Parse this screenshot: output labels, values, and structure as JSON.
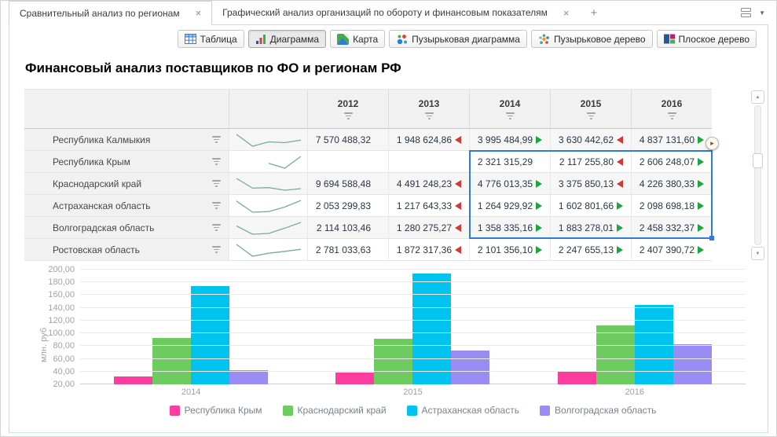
{
  "tabs": [
    {
      "label": "Сравнительный анализ по регионам",
      "active": true
    },
    {
      "label": "Графический анализ организаций по обороту и финансовым показателям",
      "active": false
    }
  ],
  "ui": {
    "close": "×",
    "plus": "+",
    "caret": "▼",
    "handle_arrow": "▸",
    "scroll_up": "▲",
    "scroll_down": "▼"
  },
  "toolbar": {
    "buttons": [
      {
        "label": "Таблица",
        "icon": "table-icon",
        "active": false
      },
      {
        "label": "Диаграмма",
        "icon": "bar-chart-icon",
        "active": true
      },
      {
        "label": "Карта",
        "icon": "map-icon",
        "active": false
      },
      {
        "label": "Пузырьковая диаграмма",
        "icon": "bubble-diagram-icon",
        "active": false
      },
      {
        "label": "Пузырьковое дерево",
        "icon": "bubble-tree-icon",
        "active": false
      },
      {
        "label": "Плоское дерево",
        "icon": "flat-tree-icon",
        "active": false
      }
    ]
  },
  "title": "Финансовый анализ поставщиков по ФО и регионам РФ",
  "table": {
    "year_columns": [
      "2012",
      "2013",
      "2014",
      "2015",
      "2016"
    ],
    "rows": [
      {
        "name": "Республика Калмыкия",
        "cells": [
          {
            "v": "7 570 488,32",
            "d": null
          },
          {
            "v": "1 948 624,86",
            "d": "down"
          },
          {
            "v": "3 995 484,99",
            "d": "up"
          },
          {
            "v": "3 630 442,62",
            "d": "down"
          },
          {
            "v": "4 837 131,60",
            "d": "up"
          }
        ],
        "spark": [
          7570488.32,
          1948624.86,
          3995484.99,
          3630442.62,
          4837131.6
        ]
      },
      {
        "name": "Республика Крым",
        "cells": [
          {
            "v": "",
            "d": null
          },
          {
            "v": "",
            "d": null
          },
          {
            "v": "2 321 315,29",
            "d": null
          },
          {
            "v": "2 117 255,80",
            "d": "down"
          },
          {
            "v": "2 606 248,07",
            "d": "up"
          }
        ],
        "spark": [
          null,
          null,
          2321315.29,
          2117255.8,
          2606248.07
        ]
      },
      {
        "name": "Краснодарский край",
        "cells": [
          {
            "v": "9 694 588,48",
            "d": null
          },
          {
            "v": "4 491 248,23",
            "d": "down"
          },
          {
            "v": "4 776 013,35",
            "d": "up"
          },
          {
            "v": "3 375 850,13",
            "d": "down"
          },
          {
            "v": "4 226 380,33",
            "d": "up"
          }
        ],
        "spark": [
          9694588.48,
          4491248.23,
          4776013.35,
          3375850.13,
          4226380.33
        ]
      },
      {
        "name": "Астраханская область",
        "cells": [
          {
            "v": "2 053 299,83",
            "d": null
          },
          {
            "v": "1 217 643,33",
            "d": "down"
          },
          {
            "v": "1 264 929,92",
            "d": "up"
          },
          {
            "v": "1 602 801,66",
            "d": "up"
          },
          {
            "v": "2 098 698,18",
            "d": "up"
          }
        ],
        "spark": [
          2053299.83,
          1217643.33,
          1264929.92,
          1602801.66,
          2098698.18
        ]
      },
      {
        "name": "Волгоградская область",
        "cells": [
          {
            "v": "2 114 103,46",
            "d": null
          },
          {
            "v": "1 280 275,27",
            "d": "down"
          },
          {
            "v": "1 358 335,16",
            "d": "up"
          },
          {
            "v": "1 883 278,01",
            "d": "up"
          },
          {
            "v": "2 458 332,37",
            "d": "up"
          }
        ],
        "spark": [
          2114103.46,
          1280275.27,
          1358335.16,
          1883278.01,
          2458332.37
        ]
      },
      {
        "name": "Ростовская область",
        "cells": [
          {
            "v": "2 781 033,63",
            "d": null
          },
          {
            "v": "1 872 317,36",
            "d": "down"
          },
          {
            "v": "2 101 356,10",
            "d": "up"
          },
          {
            "v": "2 247 655,13",
            "d": "up"
          },
          {
            "v": "2 407 390,72",
            "d": "up"
          }
        ],
        "spark": [
          2781033.63,
          1872317.36,
          2101356.1,
          2247655.13,
          2407390.72
        ]
      }
    ]
  },
  "chart_data": {
    "type": "bar",
    "categories": [
      "2014",
      "2015",
      "2016"
    ],
    "series": [
      {
        "name": "Республика Крым",
        "color": "#fb3e9d",
        "values": [
          33,
          38,
          41
        ]
      },
      {
        "name": "Краснодарский край",
        "color": "#6dcb5f",
        "values": [
          93,
          92,
          112
        ]
      },
      {
        "name": "Астраханская область",
        "color": "#00c3ef",
        "values": [
          174,
          194,
          144
        ]
      },
      {
        "name": "Волгоградская область",
        "color": "#998cf2",
        "values": [
          42,
          73,
          83
        ]
      }
    ],
    "title": "",
    "xlabel": "",
    "ylabel": "млн. руб",
    "ylim": [
      20,
      200
    ],
    "ytick_step": 20,
    "grid": true,
    "legend_position": "bottom"
  },
  "colors": {
    "selection": "#2f7bd8",
    "arrow_up": "#1ea53c",
    "arrow_down": "#d23b35",
    "sparkline": "#77aaa2"
  }
}
